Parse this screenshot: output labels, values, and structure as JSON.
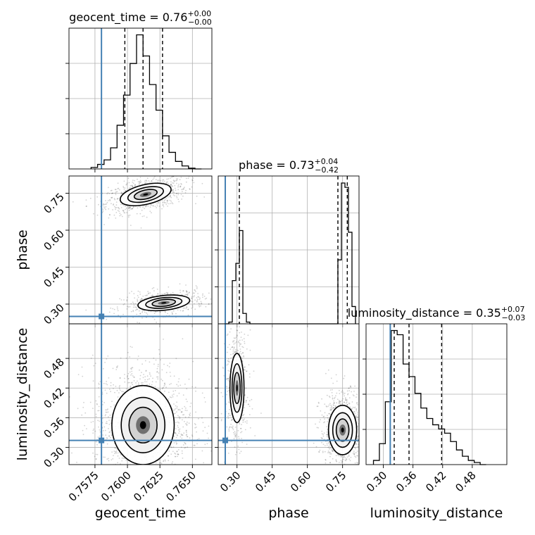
{
  "chart_data": {
    "type": "corner",
    "parameters": [
      "geocent_time",
      "phase",
      "luminosity_distance"
    ],
    "axis_labels": {
      "geocent_time": "geocent_time",
      "phase": "phase",
      "luminosity_distance": "luminosity_distance"
    },
    "truths": {
      "geocent_time": 0.758,
      "phase": 0.25,
      "luminosity_distance": 0.314
    },
    "colors": {
      "histogram": "#000000",
      "truth": "#4682b4",
      "quantile": "#000000",
      "contour": "#000000",
      "grid": "#b0b0b0"
    },
    "ranges": {
      "geocent_time": [
        0.7555,
        0.7665
      ],
      "phase": [
        0.22,
        0.82
      ],
      "luminosity_distance": [
        0.265,
        0.55
      ]
    },
    "ticks": {
      "geocent_time": [
        "0.7575",
        "0.7600",
        "0.7625",
        "0.7650"
      ],
      "phase": [
        "0.30",
        "0.45",
        "0.60",
        "0.75"
      ],
      "luminosity_distance": [
        "0.30",
        "0.36",
        "0.42",
        "0.48"
      ]
    },
    "diagonal": [
      {
        "parameter": "geocent_time",
        "title": {
          "name": "geocent_time",
          "median": "0.76",
          "plus": "+0.00",
          "minus": "−0.00"
        },
        "quantiles": [
          0.7598,
          0.7612,
          0.7627
        ],
        "bin_edges": [
          0.7572,
          0.7577,
          0.7582,
          0.7587,
          0.7592,
          0.7597,
          0.7602,
          0.7607,
          0.7612,
          0.7617,
          0.7622,
          0.7627,
          0.7632,
          0.7637,
          0.7642,
          0.7647,
          0.7652,
          0.7657
        ],
        "counts": [
          2,
          6,
          12,
          28,
          58,
          98,
          140,
          178,
          150,
          112,
          78,
          44,
          22,
          10,
          4,
          1,
          0
        ]
      },
      {
        "parameter": "phase",
        "title": {
          "name": "phase",
          "median": "0.73",
          "plus": "+0.04",
          "minus": "−0.42"
        },
        "quantiles": [
          0.31,
          0.73,
          0.77
        ],
        "bin_edges": [
          0.25,
          0.265,
          0.28,
          0.295,
          0.31,
          0.325,
          0.34,
          0.355,
          0.37,
          0.385,
          0.4,
          0.415,
          0.43,
          0.445,
          0.46,
          0.475,
          0.49,
          0.505,
          0.52,
          0.535,
          0.55,
          0.565,
          0.58,
          0.595,
          0.61,
          0.625,
          0.64,
          0.655,
          0.67,
          0.685,
          0.7,
          0.715,
          0.73,
          0.745,
          0.76,
          0.775,
          0.79,
          0.805
        ],
        "counts": [
          0,
          2,
          50,
          70,
          108,
          12,
          2,
          0,
          0,
          0,
          0,
          0,
          0,
          0,
          0,
          0,
          0,
          0,
          0,
          0,
          0,
          0,
          0,
          0,
          0,
          0,
          0,
          0,
          0,
          0,
          0,
          0,
          74,
          163,
          158,
          106,
          20
        ]
      },
      {
        "parameter": "luminosity_distance",
        "title": {
          "name": "luminosity_distance",
          "median": "0.35",
          "plus": "+0.07",
          "minus": "−0.03"
        },
        "quantiles": [
          0.322,
          0.352,
          0.418
        ],
        "bin_edges": [
          0.28,
          0.292,
          0.304,
          0.316,
          0.328,
          0.34,
          0.352,
          0.364,
          0.376,
          0.388,
          0.4,
          0.412,
          0.424,
          0.436,
          0.448,
          0.46,
          0.472,
          0.484,
          0.496,
          0.508
        ],
        "counts": [
          4,
          20,
          60,
          128,
          124,
          96,
          84,
          68,
          54,
          44,
          38,
          34,
          30,
          22,
          14,
          8,
          4,
          2,
          0
        ]
      }
    ],
    "pairs": [
      {
        "x": "geocent_time",
        "y": "phase",
        "modes": [
          {
            "center": [
              0.7614,
              0.745
            ],
            "sd": [
              0.001,
              0.02
            ],
            "tilt": 13,
            "weight": 0.62
          },
          {
            "center": [
              0.7628,
              0.305
            ],
            "sd": [
              0.001,
              0.015
            ],
            "tilt": 6,
            "weight": 0.38
          }
        ]
      },
      {
        "x": "geocent_time",
        "y": "luminosity_distance",
        "modes": [
          {
            "center": [
              0.7612,
              0.345
            ],
            "sd": [
              0.0012,
              0.04
            ],
            "tilt": 0,
            "weight": 1.0
          }
        ]
      },
      {
        "x": "phase",
        "y": "luminosity_distance",
        "modes": [
          {
            "center": [
              0.3,
              0.42
            ],
            "sd": [
              0.015,
              0.035
            ],
            "tilt": 0,
            "weight": 0.4
          },
          {
            "center": [
              0.75,
              0.335
            ],
            "sd": [
              0.03,
              0.025
            ],
            "tilt": 0,
            "weight": 0.6
          }
        ]
      }
    ]
  }
}
